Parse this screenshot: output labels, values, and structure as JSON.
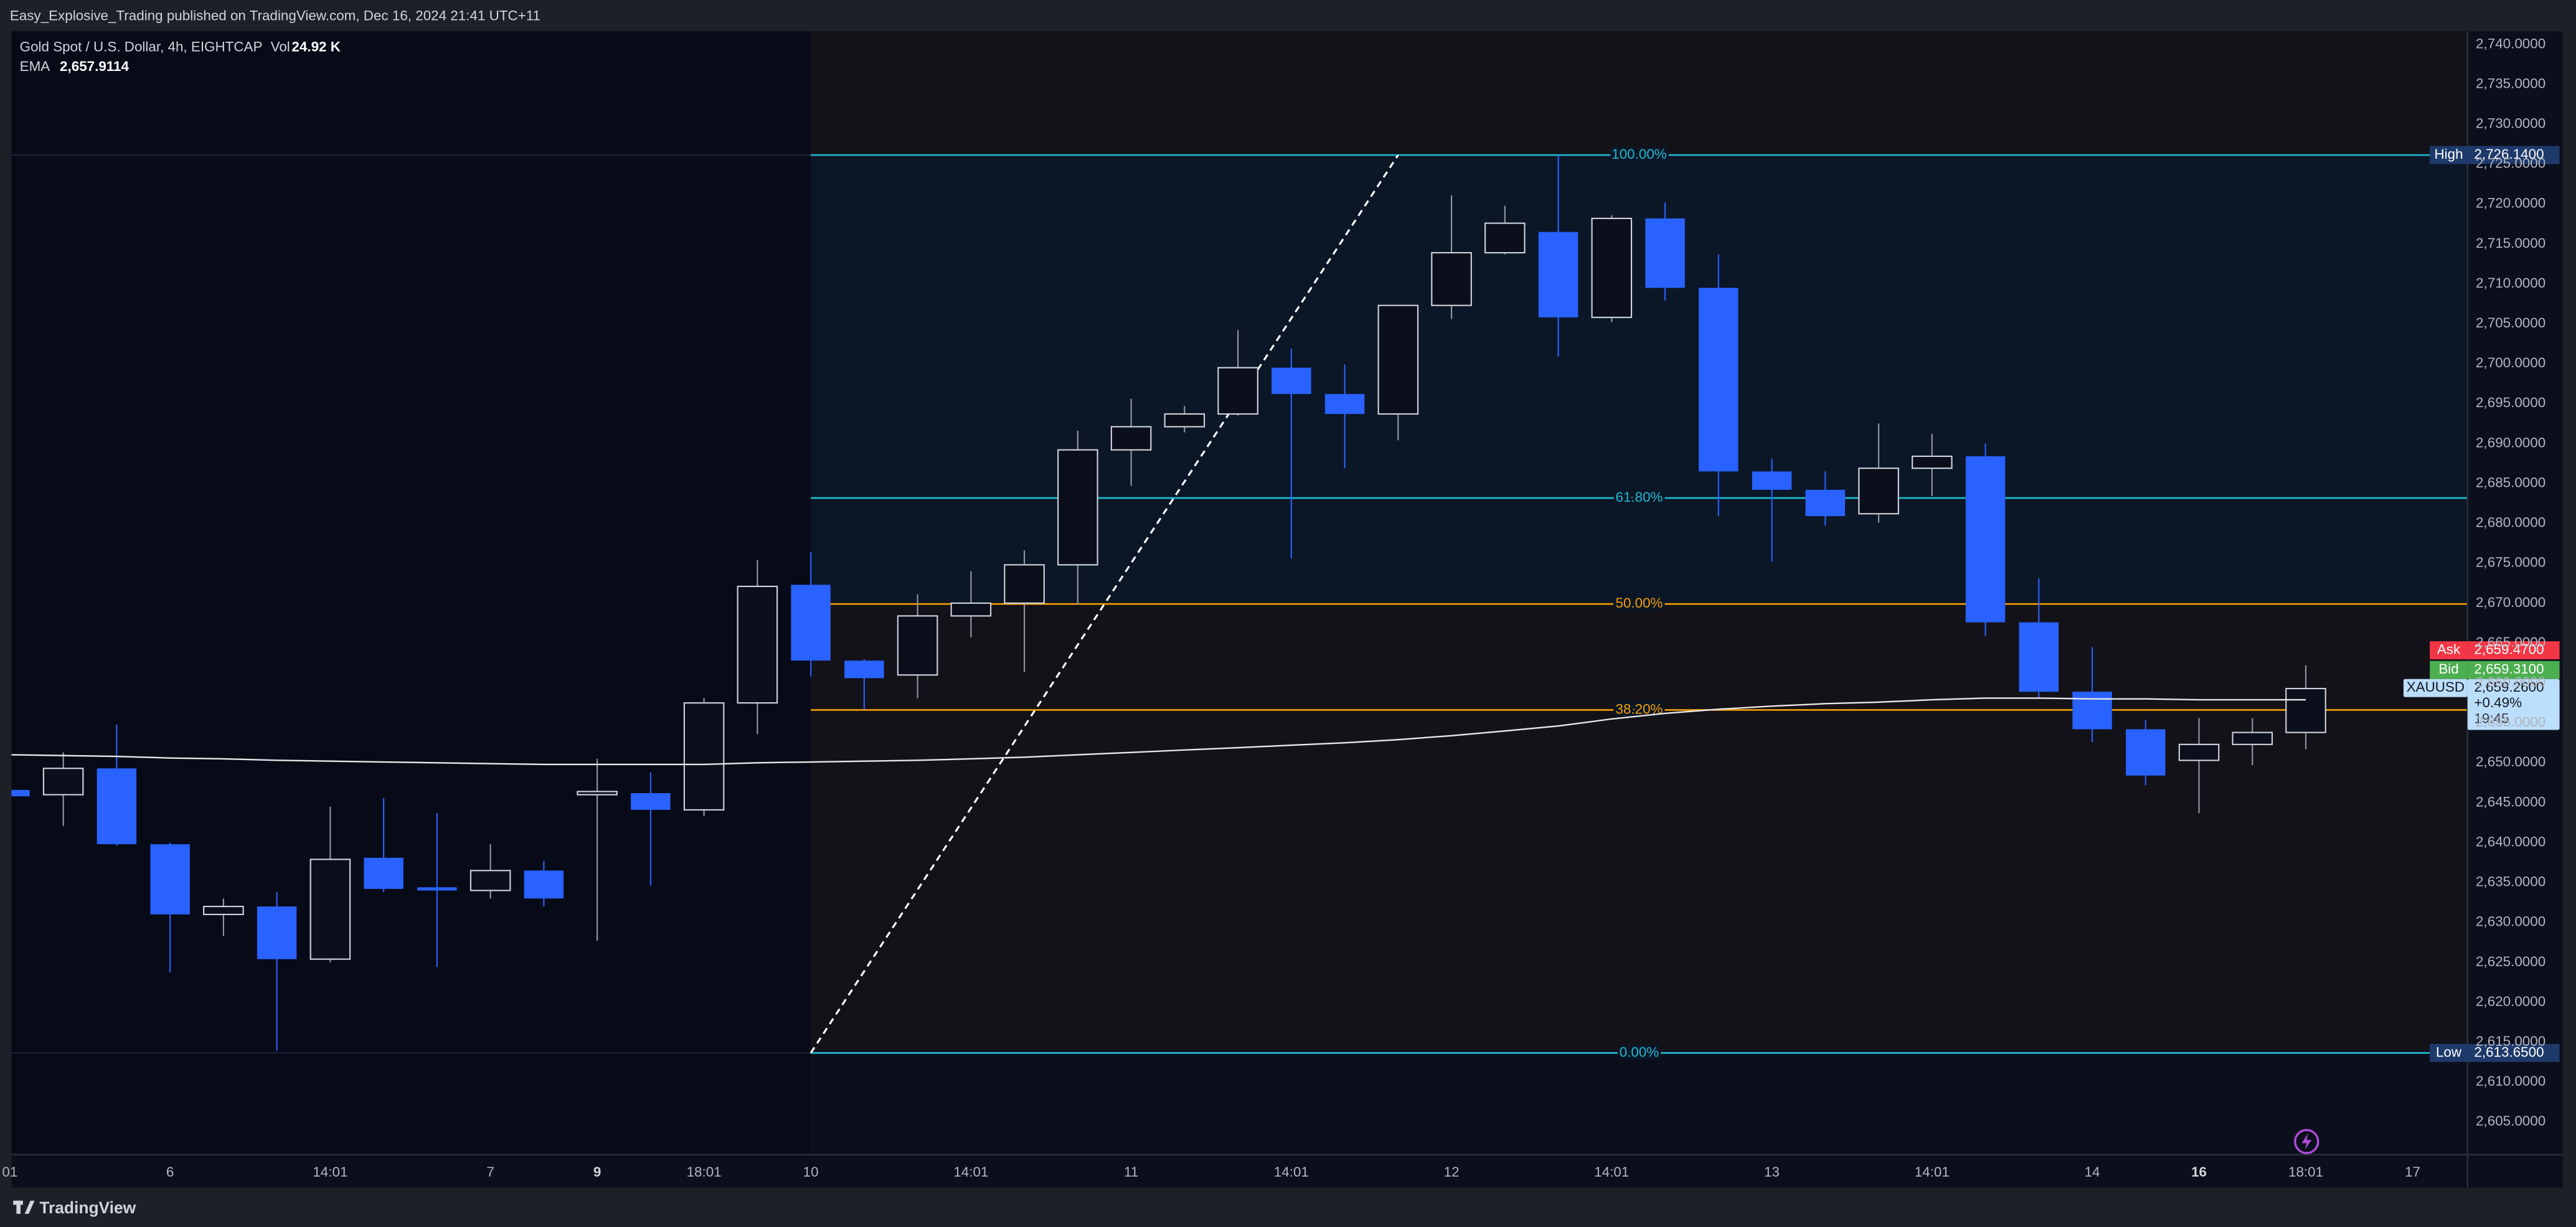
{
  "header": "Easy_Explosive_Trading published on TradingView.com, Dec 16, 2024 21:41 UTC+11",
  "footer": "TradingView",
  "chart_data": {
    "type": "candlestick",
    "title": "Gold Spot / U.S. Dollar, 4h, EIGHTCAP",
    "volume_label": "Vol",
    "volume": "24.92 K",
    "up_color": "#d1d4dc",
    "down_color": "#2962ff",
    "open": [
      2646.6,
      2646.0,
      2649.3,
      2639.8,
      2631.0,
      2632.0,
      2625.4,
      2638.1,
      2634.4,
      2634.0,
      2636.5,
      2646.0,
      2646.2,
      2644.1,
      2657.5,
      2672.3,
      2662.8,
      2661.0,
      2668.4,
      2670.0,
      2674.8,
      2689.2,
      2692.1,
      2693.7,
      2699.5,
      2696.2,
      2693.7,
      2707.3,
      2713.9,
      2716.5,
      2705.8,
      2718.2,
      2709.5,
      2686.5,
      2684.2,
      2681.2,
      2686.9,
      2688.4,
      2667.6,
      2658.9,
      2654.2,
      2650.3,
      2652.3,
      2653.8
    ],
    "high": [
      2647.0,
      2651.3,
      2654.8,
      2640.0,
      2633.0,
      2633.8,
      2644.5,
      2645.6,
      2643.7,
      2639.8,
      2637.7,
      2650.5,
      2648.8,
      2658.1,
      2675.4,
      2676.4,
      2663.0,
      2671.1,
      2674.0,
      2676.6,
      2691.6,
      2695.6,
      2694.7,
      2704.2,
      2701.9,
      2699.9,
      2707.3,
      2721.1,
      2719.8,
      2726.1,
      2718.6,
      2720.2,
      2713.7,
      2688.1,
      2686.5,
      2692.5,
      2691.2,
      2690.0,
      2673.1,
      2664.5,
      2655.4,
      2655.6,
      2655.6,
      2662.2
    ],
    "low": [
      2645.5,
      2642.1,
      2639.6,
      2623.7,
      2628.3,
      2613.9,
      2625.0,
      2633.8,
      2624.4,
      2633.0,
      2632.0,
      2627.7,
      2634.6,
      2643.3,
      2653.6,
      2660.8,
      2656.7,
      2658.1,
      2665.7,
      2661.4,
      2669.8,
      2684.7,
      2691.4,
      2693.5,
      2675.6,
      2686.9,
      2690.4,
      2705.6,
      2713.7,
      2700.9,
      2705.2,
      2707.9,
      2680.9,
      2675.2,
      2679.7,
      2680.1,
      2683.4,
      2665.9,
      2658.1,
      2652.6,
      2647.2,
      2643.7,
      2649.7,
      2651.7
    ],
    "close": [
      2645.8,
      2649.3,
      2639.8,
      2631.0,
      2632.0,
      2625.4,
      2637.9,
      2634.2,
      2634.0,
      2636.5,
      2633.0,
      2646.4,
      2644.1,
      2657.5,
      2672.1,
      2662.8,
      2660.6,
      2668.4,
      2670.0,
      2674.8,
      2689.2,
      2692.1,
      2693.7,
      2699.5,
      2696.2,
      2693.7,
      2707.3,
      2713.9,
      2717.6,
      2705.8,
      2718.2,
      2709.5,
      2686.5,
      2684.2,
      2680.9,
      2686.9,
      2688.4,
      2667.6,
      2658.9,
      2654.2,
      2648.4,
      2652.3,
      2653.8,
      2659.3
    ],
    "ema": {
      "name": "EMA",
      "value": 2657.9114,
      "label": "2,657.9114",
      "color": "#e8e8e8",
      "values": [
        2651.0,
        2650.9,
        2650.8,
        2650.6,
        2650.5,
        2650.3,
        2650.2,
        2650.1,
        2650.0,
        2649.9,
        2649.8,
        2649.8,
        2649.8,
        2649.8,
        2650.0,
        2650.1,
        2650.2,
        2650.3,
        2650.5,
        2650.7,
        2651.0,
        2651.3,
        2651.6,
        2651.9,
        2652.2,
        2652.5,
        2652.9,
        2653.4,
        2654.0,
        2654.6,
        2655.5,
        2656.2,
        2656.7,
        2657.1,
        2657.4,
        2657.6,
        2657.9,
        2658.1,
        2658.1,
        2658.0,
        2658.0,
        2657.9,
        2657.9,
        2657.9
      ]
    },
    "fib_levels": [
      {
        "label": "100.00%",
        "value": 2726.14,
        "color": "#22b8cf"
      },
      {
        "label": "61.80%",
        "value": 2683.17,
        "color": "#22b8cf"
      },
      {
        "label": "50.00%",
        "value": 2669.9,
        "color": "#f59f00"
      },
      {
        "label": "38.20%",
        "value": 2656.62,
        "color": "#f59f00"
      },
      {
        "label": "0.00%",
        "value": 2613.65,
        "color": "#22b8cf"
      }
    ],
    "price_labels": [
      {
        "name": "High",
        "value": 2726.14,
        "label": "2,726.1400",
        "color": "#1e3a6b"
      },
      {
        "name": "Low",
        "value": 2613.65,
        "label": "2,613.6500",
        "color": "#1e3a6b"
      },
      {
        "name": "Ask",
        "value": 2659.47,
        "label": "2,659.4700",
        "color": "#f23645"
      },
      {
        "name": "Bid",
        "value": 2659.31,
        "label": "2,659.3100",
        "color": "#4caf50"
      }
    ],
    "last": {
      "symbol": "XAUUSD",
      "value": 2659.26,
      "label": "2,659.2600",
      "change": "+0.49%",
      "countdown": "19:45",
      "color": "#bbdefb"
    },
    "xlim": [
      0.03,
      46.03
    ],
    "xticks": [
      {
        "value": 0,
        "label": "01"
      },
      {
        "value": 3,
        "label": "6"
      },
      {
        "value": 6,
        "label": "14:01"
      },
      {
        "value": 9,
        "label": "7"
      },
      {
        "value": 11,
        "label": "9",
        "bold": true
      },
      {
        "value": 13,
        "label": "18:01"
      },
      {
        "value": 15,
        "label": "10"
      },
      {
        "value": 18,
        "label": "14:01"
      },
      {
        "value": 21,
        "label": "11"
      },
      {
        "value": 24,
        "label": "14:01"
      },
      {
        "value": 27,
        "label": "12"
      },
      {
        "value": 30,
        "label": "14:01"
      },
      {
        "value": 33,
        "label": "13"
      },
      {
        "value": 36,
        "label": "14:01"
      },
      {
        "value": 39,
        "label": "14"
      },
      {
        "value": 41,
        "label": "16",
        "bold": true
      },
      {
        "value": 43,
        "label": "18:01"
      },
      {
        "value": 45,
        "label": "17"
      }
    ],
    "ylim": [
      2600.9,
      2741.65
    ],
    "yticks": [
      {
        "value": 2605,
        "label": "2,605.0000"
      },
      {
        "value": 2610,
        "label": "2,610.0000"
      },
      {
        "value": 2615,
        "label": "2,615.0000"
      },
      {
        "value": 2620,
        "label": "2,620.0000"
      },
      {
        "value": 2625,
        "label": "2,625.0000"
      },
      {
        "value": 2630,
        "label": "2,630.0000"
      },
      {
        "value": 2635,
        "label": "2,635.0000"
      },
      {
        "value": 2640,
        "label": "2,640.0000"
      },
      {
        "value": 2645,
        "label": "2,645.0000"
      },
      {
        "value": 2650,
        "label": "2,650.0000"
      },
      {
        "value": 2655,
        "label": "2,655.0000"
      },
      {
        "value": 2660,
        "label": "2,660.0000"
      },
      {
        "value": 2665,
        "label": "2,665.0000"
      },
      {
        "value": 2670,
        "label": "2,670.0000"
      },
      {
        "value": 2675,
        "label": "2,675.0000"
      },
      {
        "value": 2680,
        "label": "2,680.0000"
      },
      {
        "value": 2685,
        "label": "2,685.0000"
      },
      {
        "value": 2690,
        "label": "2,690.0000"
      },
      {
        "value": 2695,
        "label": "2,695.0000"
      },
      {
        "value": 2700,
        "label": "2,700.0000"
      },
      {
        "value": 2705,
        "label": "2,705.0000"
      },
      {
        "value": 2710,
        "label": "2,710.0000"
      },
      {
        "value": 2715,
        "label": "2,715.0000"
      },
      {
        "value": 2720,
        "label": "2,720.0000"
      },
      {
        "value": 2725,
        "label": "2,725.0000"
      },
      {
        "value": 2730,
        "label": "2,730.0000"
      },
      {
        "value": 2735,
        "label": "2,735.0000"
      },
      {
        "value": 2740,
        "label": "2,740.0000"
      }
    ],
    "grid": false
  }
}
